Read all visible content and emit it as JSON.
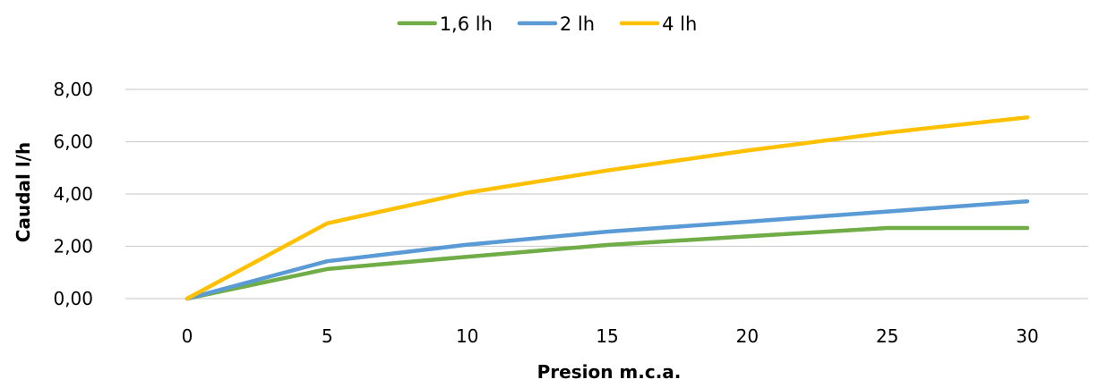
{
  "chart_data": {
    "type": "line",
    "title": "",
    "xlabel": "Presion m.c.a.",
    "ylabel": "Caudal l/h",
    "x": [
      0,
      5,
      10,
      15,
      20,
      25,
      30
    ],
    "x_tick_labels": [
      "0",
      "5",
      "10",
      "15",
      "20",
      "25",
      "30"
    ],
    "y_tick_labels": [
      "0,00",
      "2,00",
      "4,00",
      "6,00",
      "8,00"
    ],
    "y_ticks": [
      0,
      2,
      4,
      6,
      8
    ],
    "ylim": [
      0,
      8
    ],
    "grid": true,
    "legend_position": "top",
    "series": [
      {
        "name": "1,6 lh",
        "color": "#70ad47",
        "values": [
          0,
          1.13,
          1.6,
          2.05,
          2.38,
          2.7,
          2.7
        ]
      },
      {
        "name": "2 lh",
        "color": "#5b9bd5",
        "values": [
          0,
          1.43,
          2.06,
          2.56,
          2.94,
          3.33,
          3.72
        ]
      },
      {
        "name": "4 lh",
        "color": "#ffc000",
        "values": [
          0,
          2.88,
          4.05,
          4.9,
          5.66,
          6.35,
          6.93
        ]
      }
    ]
  }
}
